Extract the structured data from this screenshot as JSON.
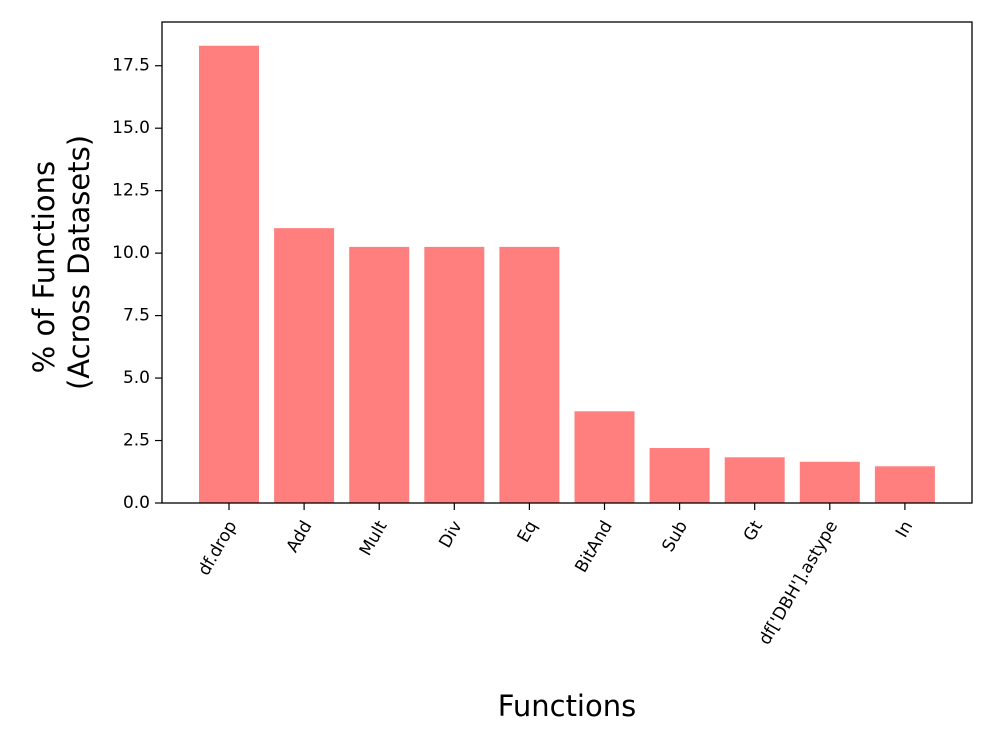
{
  "chart_data": {
    "type": "bar",
    "title": "",
    "xlabel": "Functions",
    "ylabel_lines": [
      "% of Functions",
      "(Across Datasets)"
    ],
    "categories": [
      "df.drop",
      "Add",
      "Mult",
      "Div",
      "Eq",
      "BitAnd",
      "Sub",
      "Gt",
      "df['DBH'].astype",
      "In"
    ],
    "values": [
      18.3,
      11.0,
      10.25,
      10.25,
      10.25,
      3.67,
      2.2,
      1.83,
      1.65,
      1.47
    ],
    "ylim": [
      0,
      19.25
    ],
    "yticks": [
      0.0,
      2.5,
      5.0,
      7.5,
      10.0,
      12.5,
      15.0,
      17.5
    ],
    "ytick_labels": [
      "0.0",
      "2.5",
      "5.0",
      "7.5",
      "10.0",
      "12.5",
      "15.0",
      "17.5"
    ],
    "xtick_rotation": 60,
    "grid": false,
    "bar_color": "#ff7f7f"
  }
}
